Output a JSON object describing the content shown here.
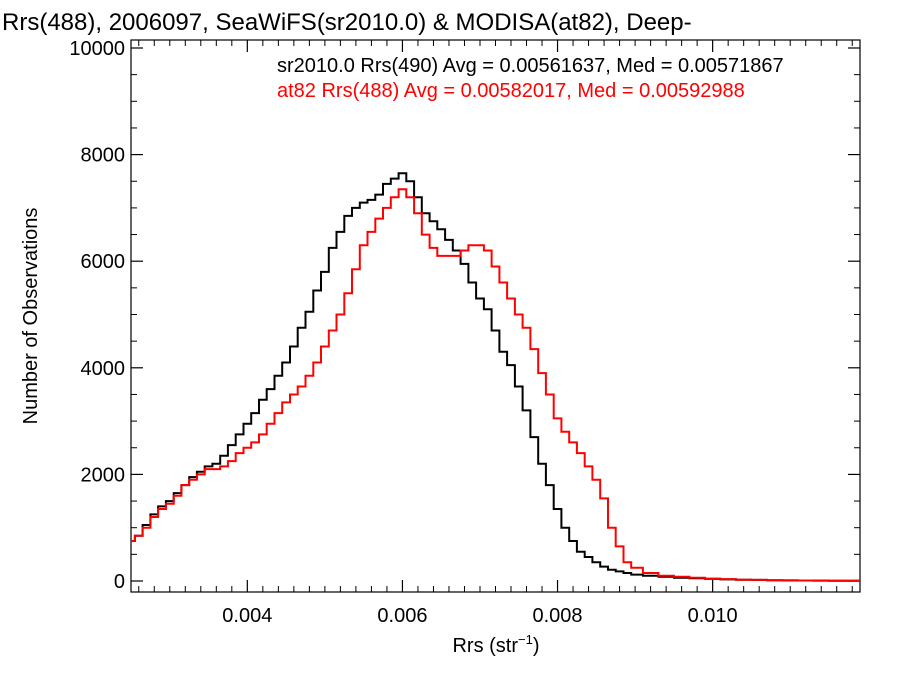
{
  "chart_data": {
    "type": "line",
    "title": "Rrs(488), 2006097, SeaWiFS(sr2010.0) & MODISA(at82), Deep-",
    "xlabel": "Rrs (str",
    "xlabel_sup": "−1",
    "xlabel_end": ")",
    "ylabel": "Number of Observations",
    "xlim": [
      0.0025,
      0.0119
    ],
    "ylim": [
      0,
      10000
    ],
    "x_ticks": [
      0.004,
      0.006,
      0.008,
      0.01
    ],
    "x_tick_labels": [
      "0.004",
      "0.006",
      "0.008",
      "0.010"
    ],
    "y_ticks": [
      0,
      2000,
      4000,
      6000,
      8000,
      10000
    ],
    "y_tick_labels": [
      "0",
      "2000",
      "4000",
      "6000",
      "8000",
      "10000"
    ],
    "legend_placement": "top-right",
    "grid": false,
    "series": [
      {
        "name": "sr2010.0 Rrs(490) Avg = 0.00561637, Med = 0.00571867",
        "color": "#000000",
        "x": [
          0.0025,
          0.0026,
          0.0027,
          0.0028,
          0.0029,
          0.003,
          0.0031,
          0.0032,
          0.0033,
          0.0034,
          0.0035,
          0.0036,
          0.0037,
          0.0038,
          0.0039,
          0.004,
          0.0041,
          0.0042,
          0.0043,
          0.0044,
          0.0045,
          0.0046,
          0.0047,
          0.0048,
          0.0049,
          0.005,
          0.0051,
          0.0052,
          0.0053,
          0.0054,
          0.0055,
          0.0056,
          0.0057,
          0.0058,
          0.0059,
          0.006,
          0.0061,
          0.0062,
          0.0063,
          0.0064,
          0.0065,
          0.0066,
          0.0067,
          0.0068,
          0.0069,
          0.007,
          0.0071,
          0.0072,
          0.0073,
          0.0074,
          0.0075,
          0.0076,
          0.0077,
          0.0078,
          0.0079,
          0.008,
          0.0081,
          0.0082,
          0.0083,
          0.0084,
          0.0085,
          0.0086,
          0.0087,
          0.0088,
          0.0089,
          0.009,
          0.0092,
          0.0094,
          0.0096,
          0.0098,
          0.01,
          0.0102,
          0.0104,
          0.0106,
          0.0108,
          0.011,
          0.0112,
          0.0114,
          0.0116,
          0.0119
        ],
        "y": [
          750,
          850,
          1050,
          1250,
          1400,
          1500,
          1650,
          1800,
          1950,
          2050,
          2150,
          2200,
          2350,
          2550,
          2750,
          2950,
          3150,
          3400,
          3600,
          3850,
          4100,
          4400,
          4750,
          5050,
          5450,
          5800,
          6250,
          6550,
          6850,
          7000,
          7100,
          7150,
          7250,
          7450,
          7550,
          7650,
          7500,
          7200,
          6900,
          6750,
          6600,
          6400,
          6200,
          5950,
          5600,
          5300,
          5100,
          4700,
          4300,
          4050,
          3650,
          3200,
          2700,
          2200,
          1800,
          1350,
          1000,
          750,
          550,
          450,
          350,
          270,
          210,
          180,
          150,
          120,
          100,
          80,
          60,
          50,
          40,
          30,
          25,
          20,
          15,
          12,
          10,
          8,
          5,
          5
        ]
      },
      {
        "name": "at82 Rrs(488) Avg = 0.00582017, Med = 0.00592988",
        "color": "#ff0000",
        "x": [
          0.0025,
          0.0026,
          0.0027,
          0.0028,
          0.0029,
          0.003,
          0.0031,
          0.0032,
          0.0033,
          0.0034,
          0.0035,
          0.0036,
          0.0037,
          0.0038,
          0.0039,
          0.004,
          0.0041,
          0.0042,
          0.0043,
          0.0044,
          0.0045,
          0.0046,
          0.0047,
          0.0048,
          0.0049,
          0.005,
          0.0051,
          0.0052,
          0.0053,
          0.0054,
          0.0055,
          0.0056,
          0.0057,
          0.0058,
          0.0059,
          0.006,
          0.0061,
          0.0062,
          0.0063,
          0.0064,
          0.0065,
          0.0066,
          0.0067,
          0.0068,
          0.0069,
          0.007,
          0.0071,
          0.0072,
          0.0073,
          0.0074,
          0.0075,
          0.0076,
          0.0077,
          0.0078,
          0.0079,
          0.008,
          0.0081,
          0.0082,
          0.0083,
          0.0084,
          0.0085,
          0.0086,
          0.0087,
          0.0088,
          0.0089,
          0.009,
          0.0092,
          0.0094,
          0.0096,
          0.0098,
          0.01,
          0.0102,
          0.0104,
          0.0106,
          0.0108,
          0.011,
          0.0112,
          0.0114,
          0.0116,
          0.0119
        ],
        "y": [
          750,
          850,
          1000,
          1200,
          1350,
          1450,
          1600,
          1800,
          1900,
          2000,
          2100,
          2100,
          2150,
          2250,
          2400,
          2500,
          2600,
          2750,
          2950,
          3150,
          3350,
          3500,
          3650,
          3850,
          4100,
          4400,
          4700,
          5000,
          5400,
          5850,
          6300,
          6550,
          6800,
          7000,
          7200,
          7350,
          7200,
          6900,
          6500,
          6250,
          6100,
          6100,
          6100,
          6200,
          6300,
          6300,
          6200,
          5900,
          5600,
          5300,
          5000,
          4750,
          4350,
          3900,
          3500,
          3050,
          2800,
          2600,
          2400,
          2150,
          1900,
          1550,
          1000,
          650,
          350,
          250,
          150,
          100,
          80,
          60,
          45,
          35,
          25,
          20,
          15,
          12,
          10,
          8,
          5,
          5
        ]
      }
    ]
  }
}
